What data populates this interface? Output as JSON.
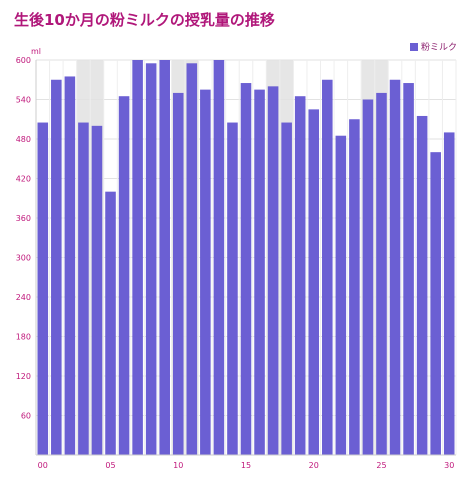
{
  "chart_data": {
    "type": "bar",
    "title": "生後10か月の粉ミルクの授乳量の推移",
    "ylabel": "ml",
    "xlabel": "",
    "legend_position": "top-right",
    "grid": true,
    "ylim": [
      0,
      600
    ],
    "y_ticks": [
      "60",
      "120",
      "180",
      "240",
      "300",
      "360",
      "420",
      "480",
      "540",
      "600"
    ],
    "x_ticks": [
      {
        "day": 0,
        "label": "00"
      },
      {
        "day": 5,
        "label": "05"
      },
      {
        "day": 10,
        "label": "10"
      },
      {
        "day": 15,
        "label": "15"
      },
      {
        "day": 20,
        "label": "20"
      },
      {
        "day": 25,
        "label": "25"
      },
      {
        "day": 30,
        "label": "30"
      }
    ],
    "shaded_days": [
      3,
      4,
      10,
      11,
      17,
      18,
      24,
      25
    ],
    "x": [
      0,
      1,
      2,
      3,
      4,
      5,
      6,
      7,
      8,
      9,
      10,
      11,
      12,
      13,
      14,
      15,
      16,
      17,
      18,
      19,
      20,
      21,
      22,
      23,
      24,
      25,
      26,
      27,
      28,
      29,
      30
    ],
    "series": [
      {
        "name": "粉ミルク",
        "color": "#6b5fd3",
        "values": [
          505,
          570,
          575,
          505,
          500,
          400,
          545,
          600,
          595,
          600,
          550,
          595,
          555,
          600,
          505,
          565,
          555,
          560,
          505,
          545,
          525,
          570,
          485,
          510,
          540,
          550,
          570,
          565,
          515,
          460,
          490
        ]
      }
    ]
  }
}
